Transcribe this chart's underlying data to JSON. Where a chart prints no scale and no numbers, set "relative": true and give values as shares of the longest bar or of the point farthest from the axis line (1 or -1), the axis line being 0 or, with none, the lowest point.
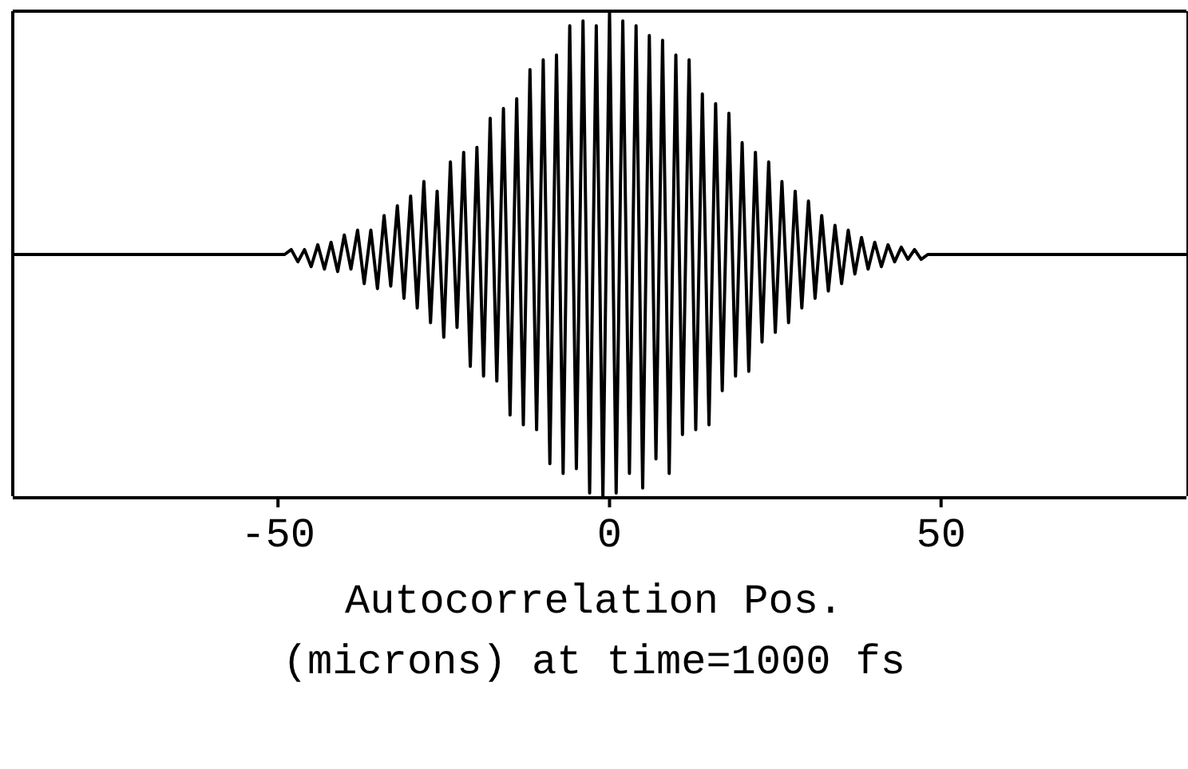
{
  "chart_data": {
    "type": "line",
    "xlabel": "Autocorrelation Pos. (microns) at time=1000 fs",
    "relative": true,
    "xlim": [
      -90,
      87
    ],
    "xticks": [
      -50,
      0,
      50
    ],
    "marker": "none",
    "grid": false,
    "legend": false,
    "series": [
      {
        "color": "#000000",
        "x": [
          -90,
          -49,
          -48,
          -47,
          -46,
          -45,
          -44,
          -43,
          -42,
          -41,
          -40,
          -39,
          -38,
          -37,
          -36,
          -35,
          -34,
          -33,
          -32,
          -31,
          -30,
          -29,
          -28,
          -27,
          -26,
          -25,
          -24,
          -23,
          -22,
          -21,
          -20,
          -19,
          -18,
          -17,
          -16,
          -15,
          -14,
          -13,
          -12,
          -11,
          -10,
          -9,
          -8,
          -7,
          -6,
          -5,
          -4,
          -3,
          -2,
          -1,
          0,
          1,
          2,
          3,
          4,
          5,
          6,
          7,
          8,
          9,
          10,
          11,
          12,
          13,
          14,
          15,
          16,
          17,
          18,
          19,
          20,
          21,
          22,
          23,
          24,
          25,
          26,
          27,
          28,
          29,
          30,
          31,
          32,
          33,
          34,
          35,
          36,
          37,
          38,
          39,
          40,
          41,
          42,
          43,
          44,
          45,
          46,
          47,
          48,
          49,
          87
        ],
        "values": [
          0.5,
          0.5,
          0.51,
          0.485,
          0.51,
          0.475,
          0.52,
          0.47,
          0.525,
          0.465,
          0.54,
          0.47,
          0.55,
          0.44,
          0.55,
          0.43,
          0.58,
          0.435,
          0.6,
          0.41,
          0.62,
          0.39,
          0.65,
          0.36,
          0.63,
          0.33,
          0.69,
          0.35,
          0.71,
          0.27,
          0.72,
          0.25,
          0.78,
          0.24,
          0.8,
          0.17,
          0.82,
          0.15,
          0.88,
          0.14,
          0.9,
          0.07,
          0.91,
          0.05,
          0.97,
          0.06,
          0.98,
          0.01,
          0.97,
          0,
          1,
          0.01,
          0.98,
          0.05,
          0.97,
          0.02,
          0.95,
          0.08,
          0.94,
          0.05,
          0.91,
          0.13,
          0.9,
          0.14,
          0.83,
          0.15,
          0.81,
          0.22,
          0.79,
          0.25,
          0.73,
          0.26,
          0.71,
          0.32,
          0.69,
          0.34,
          0.65,
          0.36,
          0.63,
          0.39,
          0.61,
          0.41,
          0.58,
          0.425,
          0.56,
          0.44,
          0.55,
          0.46,
          0.535,
          0.47,
          0.525,
          0.475,
          0.52,
          0.485,
          0.515,
          0.49,
          0.51,
          0.49,
          0.5,
          0.5,
          0.5
        ]
      }
    ]
  }
}
